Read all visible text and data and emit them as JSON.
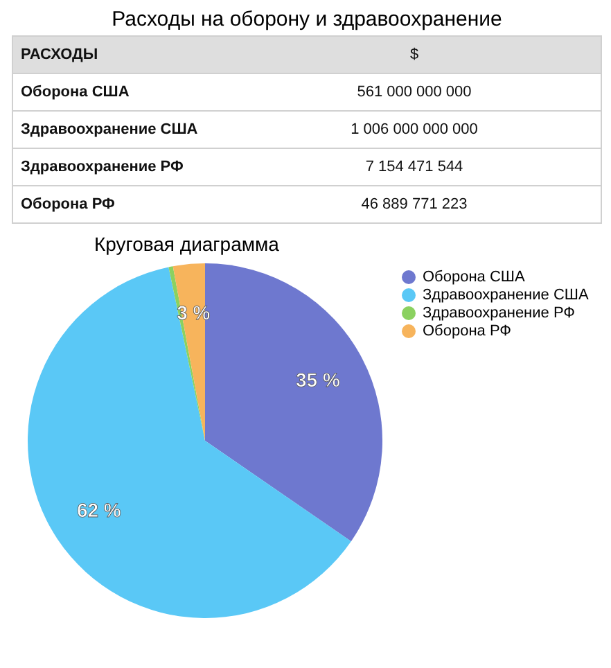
{
  "chart_data": [
    {
      "type": "other",
      "title": "Расходы на оборону и здравоохранение",
      "annotations": [
        "РАСХОДЫ",
        "$",
        "Оборона США",
        "561 000 000 000",
        "Здравоохранение США",
        "1 006 000 000 000",
        "Здравоохранение РФ",
        "7 154 471 544",
        "Оборона РФ",
        "46 889 771 223"
      ]
    },
    {
      "type": "pie",
      "title": "Круговая диаграмма",
      "categories": [
        "Оборона США",
        "Здравоохранение США",
        "Здравоохранение РФ",
        "Оборона РФ"
      ],
      "values": [
        34.6,
        62.1,
        0.4,
        2.9
      ],
      "value_labels": [
        "35 %",
        "62 %",
        null,
        "3 %"
      ],
      "colors": [
        "#6e78cf",
        "#5ac8f6",
        "#8bd160",
        "#f7b45c"
      ],
      "legend": "top right"
    }
  ]
}
